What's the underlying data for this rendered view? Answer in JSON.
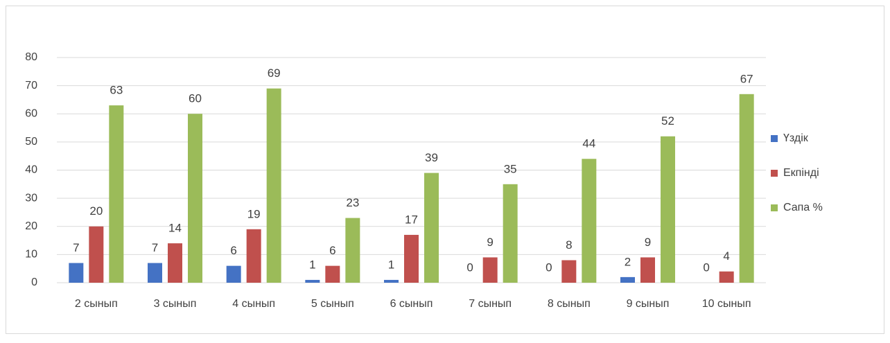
{
  "chart_data": {
    "type": "bar",
    "categories": [
      "2 сынып",
      "3 сынып",
      "4 сынып",
      "5 сынып",
      "6 сынып",
      "7 сынып",
      "8 сынып",
      "9 сынып",
      "10 сынып"
    ],
    "series": [
      {
        "name": "Үздік",
        "color": "#4472c4",
        "values": [
          7,
          7,
          6,
          1,
          1,
          0,
          0,
          2,
          0
        ]
      },
      {
        "name": "Екпінді",
        "color": "#c0504d",
        "values": [
          20,
          14,
          19,
          6,
          17,
          9,
          8,
          9,
          4
        ]
      },
      {
        "name": "Сапа %",
        "color": "#9bbb59",
        "values": [
          63,
          60,
          69,
          23,
          39,
          35,
          44,
          52,
          67
        ]
      }
    ],
    "ylim": [
      0,
      80
    ],
    "yticks": [
      0,
      10,
      20,
      30,
      40,
      50,
      60,
      70,
      80
    ],
    "grid": true,
    "legend": "right"
  }
}
